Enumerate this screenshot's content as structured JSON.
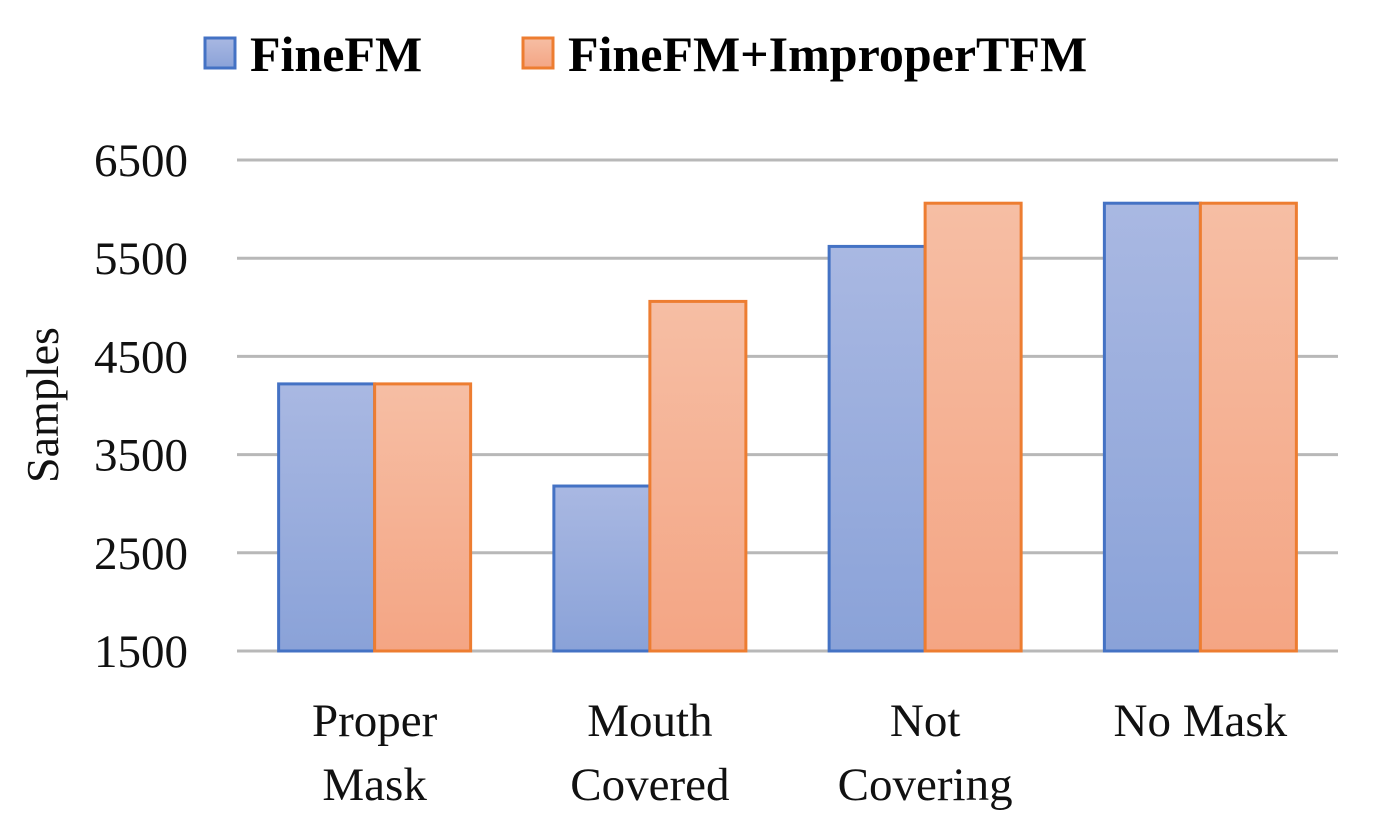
{
  "chart_data": {
    "type": "bar",
    "title": "",
    "xlabel": "",
    "ylabel": "Samples",
    "ylim": [
      1500,
      6500
    ],
    "yticks": [
      1500,
      2500,
      3500,
      4500,
      5500,
      6500
    ],
    "grid": true,
    "legend_position": "top",
    "categories": [
      [
        "Proper",
        "Mask"
      ],
      [
        "Mouth",
        "Covered"
      ],
      [
        "Not",
        "Covering"
      ],
      [
        "No Mask"
      ]
    ],
    "series": [
      {
        "name": "FineFM",
        "values": [
          4220,
          3180,
          5620,
          6060
        ],
        "fill_top": "#a9b8e2",
        "fill_bottom": "#8aa2d8",
        "stroke": "#4472c4"
      },
      {
        "name": "FineFM+ImproperTFM",
        "values": [
          4220,
          5060,
          6060,
          6060
        ],
        "fill_top": "#f6bea4",
        "fill_bottom": "#f4a584",
        "stroke": "#ed7d31"
      }
    ]
  }
}
